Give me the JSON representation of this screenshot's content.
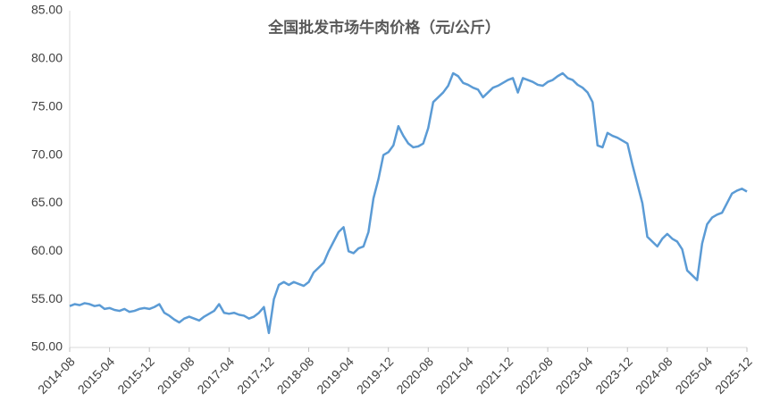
{
  "chart_data": {
    "type": "line",
    "title": "全国批发市场牛肉价格（元/公斤）",
    "categories": [
      "2014-08",
      null,
      null,
      null,
      null,
      null,
      null,
      null,
      "2015-04",
      null,
      null,
      null,
      null,
      null,
      null,
      null,
      "2015-12",
      null,
      null,
      null,
      null,
      null,
      null,
      null,
      "2016-08",
      null,
      null,
      null,
      null,
      null,
      null,
      null,
      "2017-04",
      null,
      null,
      null,
      null,
      null,
      null,
      null,
      "2017-12",
      null,
      null,
      null,
      null,
      null,
      null,
      null,
      "2018-08",
      null,
      null,
      null,
      null,
      null,
      null,
      null,
      "2019-04",
      null,
      null,
      null,
      null,
      null,
      null,
      null,
      "2019-12",
      null,
      null,
      null,
      null,
      null,
      null,
      null,
      "2020-08",
      null,
      null,
      null,
      null,
      null,
      null,
      null,
      "2021-04",
      null,
      null,
      null,
      null,
      null,
      null,
      null,
      "2021-12",
      null,
      null,
      null,
      null,
      null,
      null,
      null,
      "2022-08",
      null,
      null,
      null,
      null,
      null,
      null,
      null,
      "2023-04",
      null,
      null,
      null,
      null,
      null,
      null,
      null,
      "2023-12",
      null,
      null,
      null,
      null,
      null,
      null,
      null,
      "2024-08",
      null,
      null,
      null,
      null,
      null,
      null,
      null,
      "2025-04",
      null,
      null,
      null,
      null,
      null,
      null,
      null,
      "2025-12"
    ],
    "series": [
      {
        "name": "全国批发市场牛肉价格",
        "color": "#5b9bd5",
        "values": [
          54.3,
          54.5,
          54.4,
          54.6,
          54.5,
          54.3,
          54.4,
          54.0,
          54.1,
          53.9,
          53.8,
          54.0,
          53.7,
          53.8,
          54.0,
          54.1,
          54.0,
          54.2,
          54.5,
          53.6,
          53.3,
          52.9,
          52.6,
          53.0,
          53.2,
          53.0,
          52.8,
          53.2,
          53.5,
          53.8,
          54.5,
          53.6,
          53.5,
          53.6,
          53.4,
          53.3,
          53.0,
          53.2,
          53.6,
          54.2,
          51.5,
          55.0,
          56.5,
          56.8,
          56.5,
          56.8,
          56.6,
          56.4,
          56.8,
          57.8,
          58.3,
          58.8,
          60.0,
          61.0,
          62.0,
          62.5,
          60.0,
          59.8,
          60.3,
          60.5,
          62.0,
          65.5,
          67.5,
          70.0,
          70.3,
          71.0,
          73.0,
          72.0,
          71.2,
          70.8,
          70.9,
          71.2,
          72.8,
          75.5,
          76.0,
          76.5,
          77.2,
          78.5,
          78.2,
          77.5,
          77.3,
          77.0,
          76.8,
          76.0,
          76.5,
          77.0,
          77.2,
          77.5,
          77.8,
          78.0,
          76.5,
          78.0,
          77.8,
          77.6,
          77.3,
          77.2,
          77.6,
          77.8,
          78.2,
          78.5,
          78.0,
          77.8,
          77.3,
          77.0,
          76.5,
          75.5,
          71.0,
          70.8,
          72.3,
          72.0,
          71.8,
          71.5,
          71.2,
          69.0,
          67.0,
          65.0,
          61.5,
          61.0,
          60.5,
          61.3,
          61.8,
          61.3,
          61.0,
          60.2,
          58.0,
          57.5,
          57.0,
          60.8,
          62.8,
          63.5,
          63.8,
          64.0,
          65.0,
          66.0,
          66.3,
          66.5,
          66.2
        ]
      }
    ],
    "ylim": [
      50,
      85
    ],
    "yticks": [
      {
        "value": 50,
        "label": "50.00"
      },
      {
        "value": 55,
        "label": "55.00"
      },
      {
        "value": 60,
        "label": "60.00"
      },
      {
        "value": 65,
        "label": "65.00"
      },
      {
        "value": 70,
        "label": "70.00"
      },
      {
        "value": 75,
        "label": "75.00"
      },
      {
        "value": 80,
        "label": "80.00"
      },
      {
        "value": 85,
        "label": "85.00"
      }
    ],
    "grid": false
  }
}
